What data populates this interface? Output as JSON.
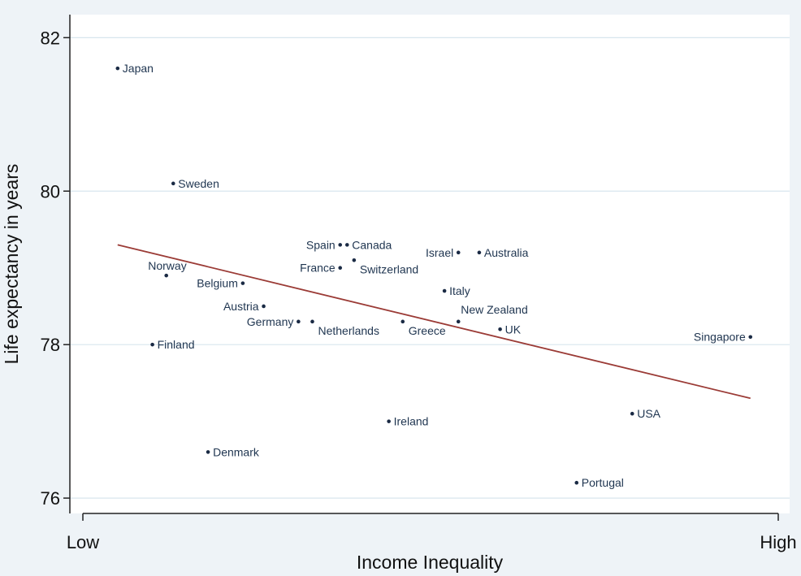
{
  "chart_data": {
    "type": "scatter",
    "title": "",
    "xlabel": "Income Inequality",
    "ylabel": "Life expectancy in years",
    "x_tick_labels": [
      "Low",
      "High"
    ],
    "xlim": [
      0,
      1
    ],
    "ylim": [
      75.8,
      82.3
    ],
    "y_ticks": [
      76,
      78,
      80,
      82
    ],
    "grid": true,
    "points": [
      {
        "label": "Japan",
        "x": 0.05,
        "y": 81.6,
        "label_side": "right"
      },
      {
        "label": "Sweden",
        "x": 0.13,
        "y": 80.1,
        "label_side": "right"
      },
      {
        "label": "Norway",
        "x": 0.12,
        "y": 78.9,
        "label_side": "above-left"
      },
      {
        "label": "Finland",
        "x": 0.1,
        "y": 78.0,
        "label_side": "right"
      },
      {
        "label": "Belgium",
        "x": 0.23,
        "y": 78.8,
        "label_side": "left"
      },
      {
        "label": "Austria",
        "x": 0.26,
        "y": 78.5,
        "label_side": "left"
      },
      {
        "label": "Denmark",
        "x": 0.18,
        "y": 76.6,
        "label_side": "right"
      },
      {
        "label": "Germany",
        "x": 0.31,
        "y": 78.3,
        "label_side": "left"
      },
      {
        "label": "Netherlands",
        "x": 0.33,
        "y": 78.3,
        "label_side": "below-right"
      },
      {
        "label": "Spain",
        "x": 0.37,
        "y": 79.3,
        "label_side": "left"
      },
      {
        "label": "Canada",
        "x": 0.38,
        "y": 79.3,
        "label_side": "right"
      },
      {
        "label": "France",
        "x": 0.37,
        "y": 79.0,
        "label_side": "left"
      },
      {
        "label": "Switzerland",
        "x": 0.39,
        "y": 79.1,
        "label_side": "below-right"
      },
      {
        "label": "Greece",
        "x": 0.46,
        "y": 78.3,
        "label_side": "below-right"
      },
      {
        "label": "Ireland",
        "x": 0.44,
        "y": 77.0,
        "label_side": "right"
      },
      {
        "label": "Italy",
        "x": 0.52,
        "y": 78.7,
        "label_side": "right"
      },
      {
        "label": "Israel",
        "x": 0.54,
        "y": 79.2,
        "label_side": "left"
      },
      {
        "label": "Australia",
        "x": 0.57,
        "y": 79.2,
        "label_side": "right"
      },
      {
        "label": "New Zealand",
        "x": 0.54,
        "y": 78.3,
        "label_side": "above-right"
      },
      {
        "label": "UK",
        "x": 0.6,
        "y": 78.2,
        "label_side": "right"
      },
      {
        "label": "USA",
        "x": 0.79,
        "y": 77.1,
        "label_side": "right"
      },
      {
        "label": "Portugal",
        "x": 0.71,
        "y": 76.2,
        "label_side": "right"
      },
      {
        "label": "Singapore",
        "x": 0.96,
        "y": 78.1,
        "label_side": "left"
      }
    ],
    "fit_line": {
      "x": [
        0.05,
        0.96
      ],
      "y": [
        79.3,
        77.3
      ],
      "color": "#9b3b36"
    },
    "colors": {
      "background": "#eef3f7",
      "plot_background": "#ffffff",
      "grid": "#d8e6ee",
      "point": "#1a2a44",
      "label": "#1f3550"
    }
  }
}
